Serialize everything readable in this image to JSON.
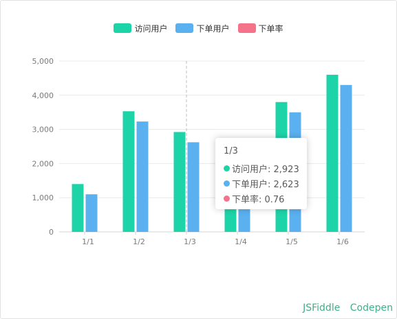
{
  "colors": {
    "visits": "#1dd4a8",
    "orders": "#5bb0ef",
    "rate": "#f4738a"
  },
  "legend": [
    {
      "label": "访问用户",
      "color": "#1dd4a8"
    },
    {
      "label": "下单用户",
      "color": "#5bb0ef"
    },
    {
      "label": "下单率",
      "color": "#f4738a"
    }
  ],
  "chart_data": {
    "type": "bar",
    "categories": [
      "1/1",
      "1/2",
      "1/3",
      "1/4",
      "1/5",
      "1/6"
    ],
    "series": [
      {
        "name": "访问用户",
        "values": [
          1400,
          3530,
          2923,
          1150,
          3800,
          4600
        ]
      },
      {
        "name": "下单用户",
        "values": [
          1100,
          3230,
          2623,
          850,
          3500,
          4300
        ]
      }
    ],
    "ylim": [
      0,
      5000
    ],
    "yticks": [
      "0",
      "1,000",
      "2,000",
      "3,000",
      "4,000",
      "5,000"
    ],
    "grid": true,
    "legend_position": "top",
    "crosshair_category": "1/3"
  },
  "tooltip": {
    "title": "1/3",
    "rows": [
      {
        "label": "访问用户: 2,923",
        "color": "#1dd4a8"
      },
      {
        "label": "下单用户: 2,623",
        "color": "#5bb0ef"
      },
      {
        "label": "下单率: 0.76",
        "color": "#f4738a"
      }
    ]
  },
  "footer": {
    "jsfiddle": "JSFiddle",
    "codepen": "Codepen"
  }
}
